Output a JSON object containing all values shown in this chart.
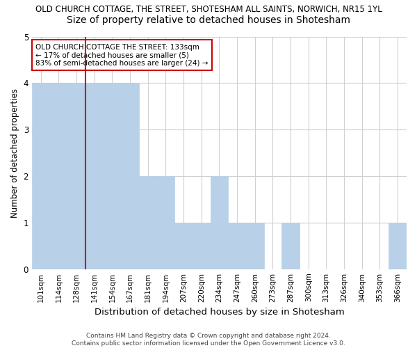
{
  "title1": "OLD CHURCH COTTAGE, THE STREET, SHOTESHAM ALL SAINTS, NORWICH, NR15 1YL",
  "title2": "Size of property relative to detached houses in Shotesham",
  "xlabel": "Distribution of detached houses by size in Shotesham",
  "ylabel": "Number of detached properties",
  "categories": [
    "101sqm",
    "114sqm",
    "128sqm",
    "141sqm",
    "154sqm",
    "167sqm",
    "181sqm",
    "194sqm",
    "207sqm",
    "220sqm",
    "234sqm",
    "247sqm",
    "260sqm",
    "273sqm",
    "287sqm",
    "300sqm",
    "313sqm",
    "326sqm",
    "340sqm",
    "353sqm",
    "366sqm"
  ],
  "values": [
    4,
    4,
    4,
    4,
    4,
    4,
    2,
    2,
    1,
    1,
    2,
    1,
    1,
    0,
    1,
    0,
    0,
    0,
    0,
    0,
    1
  ],
  "bar_color": "#b8d0e8",
  "red_line_color": "#cc0000",
  "red_line_x": 2.5,
  "annotation_text": "OLD CHURCH COTTAGE THE STREET: 133sqm\n← 17% of detached houses are smaller (5)\n83% of semi-detached houses are larger (24) →",
  "annotation_box_color": "#ffffff",
  "annotation_box_edge": "#cc0000",
  "footer1": "Contains HM Land Registry data © Crown copyright and database right 2024.",
  "footer2": "Contains public sector information licensed under the Open Government Licence v3.0.",
  "ylim": [
    0,
    5
  ],
  "yticks": [
    0,
    1,
    2,
    3,
    4,
    5
  ],
  "bg_color": "#ffffff",
  "grid_color": "#d0d0d0",
  "title1_fontsize": 8.5,
  "title2_fontsize": 10,
  "xlabel_fontsize": 9.5,
  "ylabel_fontsize": 8.5,
  "tick_fontsize": 7.5,
  "annotation_fontsize": 7.5,
  "footer_fontsize": 6.5
}
